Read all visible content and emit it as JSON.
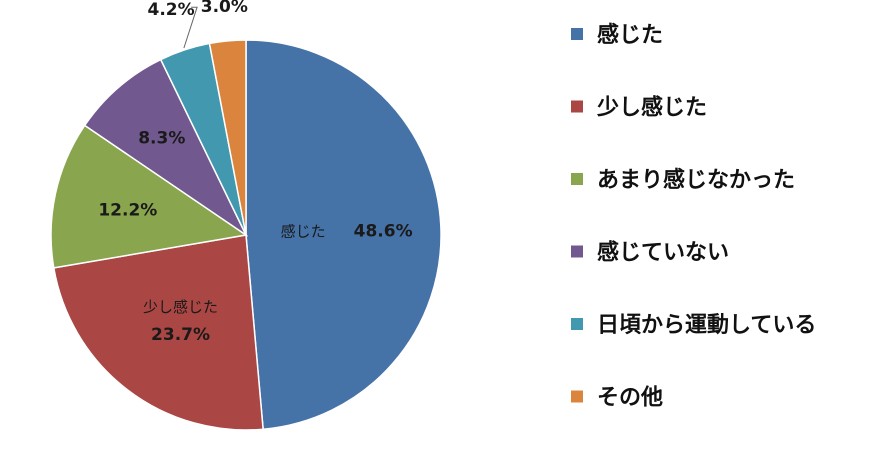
{
  "chart_data": {
    "type": "pie",
    "categories": [
      "感じた",
      "少し感じた",
      "あまり感じなかった",
      "感じていない",
      "日頃から運動している",
      "その他"
    ],
    "values": [
      48.6,
      23.7,
      12.2,
      8.3,
      4.2,
      3.0
    ],
    "value_labels": [
      "48.6%",
      "23.7%",
      "12.2%",
      "8.3%",
      "4.2%",
      "3.0%"
    ],
    "colors": [
      "#4572A7",
      "#AA4643",
      "#89A54E",
      "#71588F",
      "#4198AF",
      "#DB843D"
    ],
    "slice_category_labels": [
      "感じた",
      "少し感じた",
      "",
      "",
      "",
      ""
    ],
    "legend_position": "right",
    "title": ""
  }
}
